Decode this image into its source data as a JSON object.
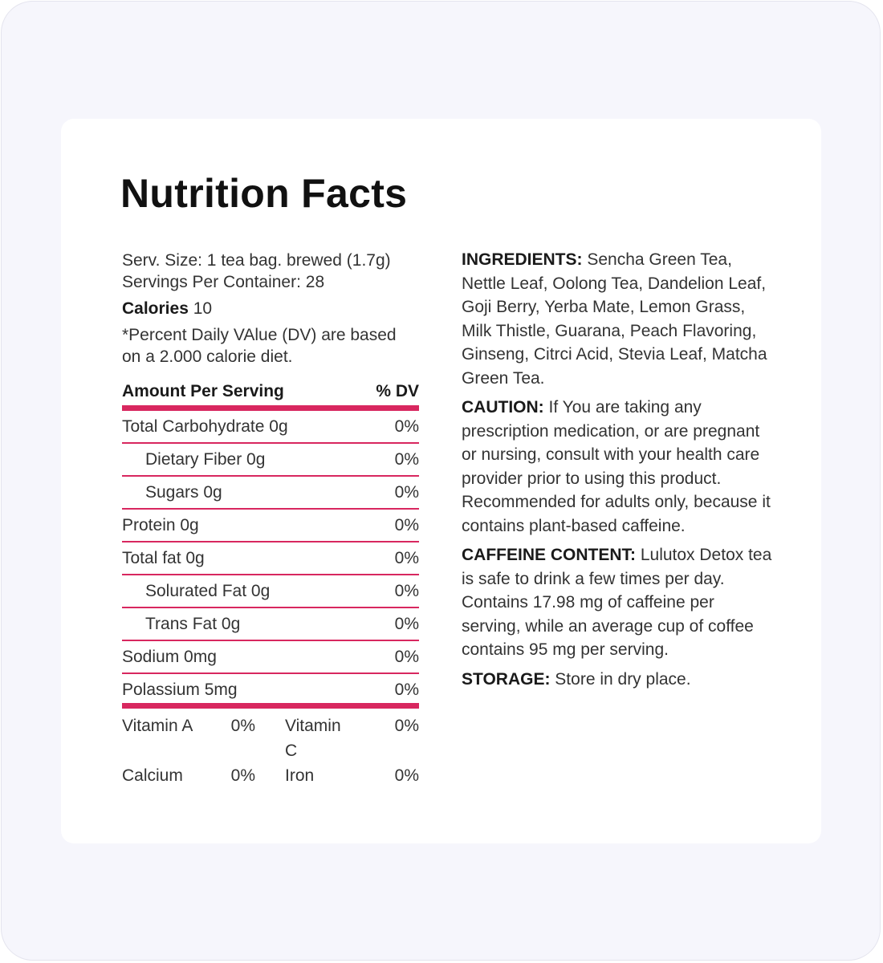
{
  "title": "Nutrition Facts",
  "serving": {
    "size": "Serv. Size: 1 tea bag. brewed (1.7g)",
    "per_container": "Servings Per Container: 28",
    "calories_label": "Calories",
    "calories_value": "10",
    "dv_note": "*Percent Daily VAlue (DV) are based on a 2.000 calorie diet."
  },
  "table": {
    "header_left": "Amount Per Serving",
    "header_right": "% DV",
    "rows": [
      {
        "label": "Total Carbohydrate 0g",
        "dv": "0%"
      },
      {
        "label": "Dietary Fiber 0g",
        "dv": "0%"
      },
      {
        "label": "Sugars 0g",
        "dv": "0%"
      },
      {
        "label": "Protein 0g",
        "dv": "0%"
      },
      {
        "label": "Total fat 0g",
        "dv": "0%"
      },
      {
        "label": "Solurated Fat 0g",
        "dv": "0%"
      },
      {
        "label": "Trans Fat 0g",
        "dv": "0%"
      },
      {
        "label": "Sodium 0mg",
        "dv": "0%"
      },
      {
        "label": "Polassium 5mg",
        "dv": "0%"
      }
    ],
    "vitamins": [
      {
        "label": "Vitamin A",
        "dv": "0%"
      },
      {
        "label": "Vitamin C",
        "dv": "0%"
      },
      {
        "label": "Calcium",
        "dv": "0%"
      },
      {
        "label": "Iron",
        "dv": "0%"
      }
    ]
  },
  "info": [
    {
      "label": "INGREDIENTS:",
      "text": " Sencha Green Tea, Nettle Leaf, Oolong Tea, Dandelion Leaf, Goji Berry, Yerba Mate, Lemon Grass, Milk Thistle, Guarana, Peach Flavoring, Ginseng, Citrci Acid, Stevia Leaf, Matcha Green Tea."
    },
    {
      "label": "CAUTION:",
      "text": " If You are taking any prescription medication, or are pregnant or nursing, consult with your health care provider prior to using this product. Recommended for adults only, because it contains plant-based caffeine."
    },
    {
      "label": "CAFFEINE CONTENT:",
      "text": " Lulutox Detox tea is safe to drink a few times per day. Contains 17.98 mg of caffeine per serving, while an average cup of coffee contains 95 mg per serving."
    },
    {
      "label": "STORAGE:",
      "text": " Store in dry place."
    }
  ],
  "colors": {
    "accent": "#d8275f",
    "background": "#f6f6fc",
    "card": "#ffffff"
  }
}
